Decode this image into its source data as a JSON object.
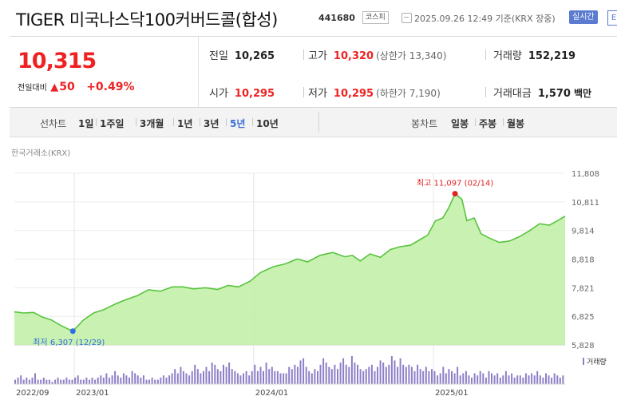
{
  "header": {
    "title": "TIGER 미국나스닥100커버드콜(합성)",
    "code": "441680",
    "market": "코스피",
    "datetime": "2025.09.26 12:49 기준(KRX 장중)",
    "realtime_label": "실시간",
    "more_label": "E"
  },
  "quote": {
    "price": "10,315",
    "change_label": "전일대비",
    "change_arrow": "▲",
    "change": "50",
    "change_pct": "+0.49%",
    "up_color": "#e22222"
  },
  "stats": {
    "prev_close_label": "전일",
    "prev_close": "10,265",
    "high_label": "고가",
    "high": "10,320",
    "upper_limit": "(상한가 13,340)",
    "volume_label": "거래량",
    "volume": "152,219",
    "open_label": "시가",
    "open": "10,295",
    "low_label": "저가",
    "low": "10,295",
    "lower_limit": "(하한가 7,190)",
    "amount_label": "거래대금",
    "amount": "1,570",
    "amount_unit": "백만"
  },
  "periods": {
    "line_label": "선차트",
    "line_items": [
      "1일",
      "1주일",
      "3개월",
      "1년",
      "3년",
      "5년",
      "10년"
    ],
    "selected": "5년",
    "candle_label": "봉차트",
    "candle_items": [
      "일봉",
      "주봉",
      "월봉"
    ]
  },
  "exchange_label": "한국거래소(KRX)",
  "chart_data": {
    "type": "area",
    "y_ticks": [
      "11,808",
      "10,811",
      "9,814",
      "8,818",
      "7,821",
      "6,825",
      "5,828"
    ],
    "ylim": [
      5828,
      11808
    ],
    "x_tick_labels": [
      "2022/09",
      "2023/01",
      "2024/01",
      "2025/01"
    ],
    "x_ticks_dates": [
      "2022-09-01",
      "2023-01-01",
      "2024-01-01",
      "2025-01-01"
    ],
    "x_range": [
      "2022-09-01",
      "2025-09-26"
    ],
    "max_annotation": "최고 11,097 (02/14)",
    "min_annotation": "최저 6,307 (12/29)",
    "volume_label": "거래량",
    "colors": {
      "line": "#58c33e",
      "fill": "#bff0a4",
      "max": "#e22222",
      "min": "#2f6fde",
      "volume": "#8f7fc8"
    },
    "series": [
      {
        "x": [
          "2022-09-01",
          "2022-09-20",
          "2022-10-10",
          "2022-10-28",
          "2022-11-15",
          "2022-12-05",
          "2022-12-29",
          "2023-01-20",
          "2023-02-10",
          "2023-03-01",
          "2023-03-25",
          "2023-04-15",
          "2023-05-10",
          "2023-06-01",
          "2023-06-25",
          "2023-07-20",
          "2023-08-10",
          "2023-09-01",
          "2023-09-25",
          "2023-10-20",
          "2023-11-10",
          "2023-12-01",
          "2023-12-25",
          "2024-01-15",
          "2024-02-10",
          "2024-03-05",
          "2024-03-30",
          "2024-04-20",
          "2024-05-15",
          "2024-06-10",
          "2024-07-05",
          "2024-07-20",
          "2024-08-05",
          "2024-08-25",
          "2024-09-15",
          "2024-10-05",
          "2024-10-25",
          "2024-11-15",
          "2024-12-05",
          "2024-12-20",
          "2025-01-05",
          "2025-01-20",
          "2025-02-01",
          "2025-02-14",
          "2025-02-28",
          "2025-03-10",
          "2025-03-25",
          "2025-04-08",
          "2025-04-25",
          "2025-05-15",
          "2025-06-05",
          "2025-06-25",
          "2025-07-15",
          "2025-08-05",
          "2025-08-25",
          "2025-09-10",
          "2025-09-26"
        ],
        "values": [
          6980,
          6940,
          6960,
          6800,
          6700,
          6500,
          6307,
          6700,
          6950,
          7050,
          7250,
          7400,
          7550,
          7750,
          7700,
          7850,
          7850,
          7780,
          7820,
          7760,
          7900,
          7850,
          8050,
          8350,
          8550,
          8650,
          8820,
          8720,
          8950,
          9050,
          8900,
          8950,
          8750,
          9000,
          8880,
          9150,
          9250,
          9300,
          9500,
          9650,
          10150,
          10250,
          10600,
          11097,
          10900,
          10150,
          10250,
          9700,
          9550,
          9400,
          9450,
          9600,
          9800,
          10050,
          10000,
          10150,
          10315
        ]
      }
    ],
    "volume_note": "relative volume bars, heights estimated",
    "volume": [
      2,
      3,
      4,
      2,
      3,
      2,
      3,
      5,
      2,
      2,
      3,
      2,
      2,
      1,
      2,
      3,
      2,
      2,
      3,
      2,
      2,
      3,
      4,
      2,
      2,
      3,
      2,
      3,
      2,
      3,
      4,
      3,
      5,
      3,
      4,
      6,
      4,
      3,
      5,
      4,
      3,
      6,
      5,
      4,
      3,
      4,
      2,
      2,
      3,
      2,
      2,
      3,
      4,
      3,
      4,
      5,
      7,
      5,
      8,
      6,
      5,
      4,
      6,
      9,
      7,
      5,
      6,
      8,
      6,
      10,
      9,
      7,
      6,
      9,
      8,
      10,
      7,
      6,
      5,
      4,
      5,
      6,
      4,
      6,
      9,
      6,
      8,
      6,
      10,
      7,
      8,
      6,
      6,
      5,
      5,
      5,
      8,
      7,
      9,
      8,
      11,
      12,
      8,
      6,
      5,
      7,
      6,
      9,
      12,
      10,
      8,
      7,
      9,
      7,
      10,
      12,
      9,
      8,
      13,
      10,
      9,
      7,
      6,
      7,
      8,
      9,
      6,
      8,
      11,
      10,
      8,
      9,
      13,
      11,
      8,
      12,
      9,
      8,
      9,
      8,
      6,
      9,
      7,
      6,
      8,
      6,
      7,
      6,
      4,
      5,
      8,
      5,
      7,
      6,
      5,
      8,
      4,
      5,
      6,
      4,
      3,
      5,
      4,
      6,
      5,
      3,
      6,
      5,
      4,
      5,
      3,
      4,
      6,
      4,
      5,
      3,
      4,
      4,
      3,
      5,
      4,
      5,
      4,
      6,
      4,
      3,
      5,
      4,
      3,
      5,
      4,
      3,
      4
    ]
  }
}
